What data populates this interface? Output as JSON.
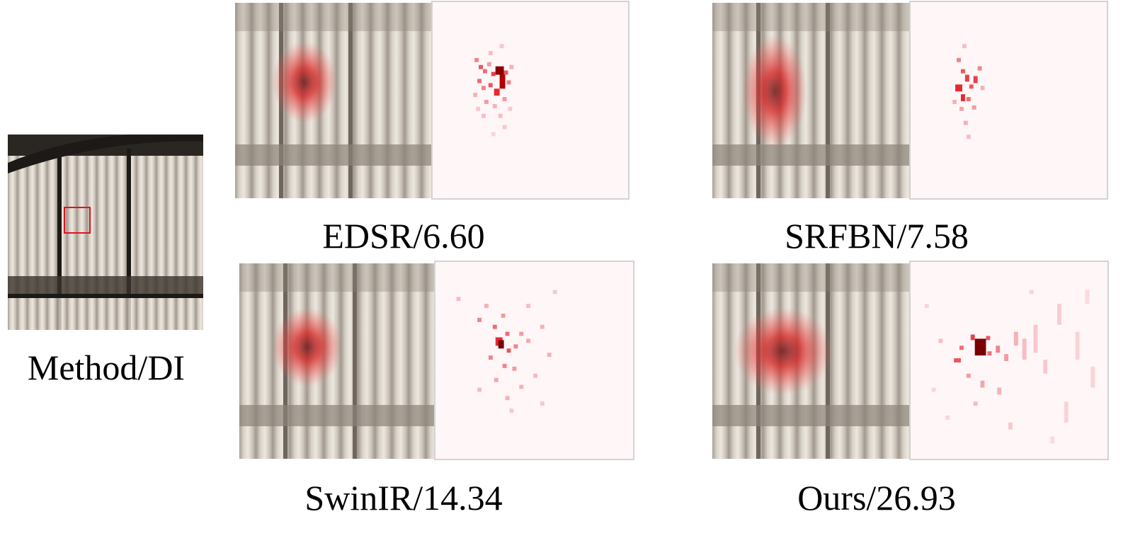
{
  "figure": {
    "reference": {
      "caption": "Method/DI"
    },
    "panels": [
      {
        "caption": "EDSR/6.60"
      },
      {
        "caption": "SRFBN/7.58"
      },
      {
        "caption": "SwinIR/14.34"
      },
      {
        "caption": "Ours/26.93"
      }
    ]
  },
  "colors": {
    "roi_box": "#e0141c",
    "heat_red": "#e0141c",
    "heat_background": "#fff6f8"
  }
}
